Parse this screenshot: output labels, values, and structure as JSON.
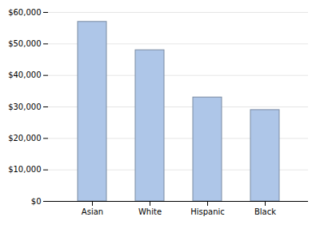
{
  "chart_data": {
    "type": "bar",
    "categories": [
      "Asian",
      "White",
      "Hispanic",
      "Black"
    ],
    "values": [
      57000,
      48000,
      33000,
      29000
    ],
    "color": "#aec6e8",
    "ylim": [
      0,
      60000
    ],
    "yticks": [
      {
        "value": 0,
        "label": "$0"
      },
      {
        "value": 10000,
        "label": "$10,000"
      },
      {
        "value": 20000,
        "label": "$20,000"
      },
      {
        "value": 30000,
        "label": "$30,000"
      },
      {
        "value": 40000,
        "label": "$40,000"
      },
      {
        "value": 50000,
        "label": "$50,000"
      },
      {
        "value": 60000,
        "label": "$60,000"
      }
    ],
    "grid": true
  }
}
